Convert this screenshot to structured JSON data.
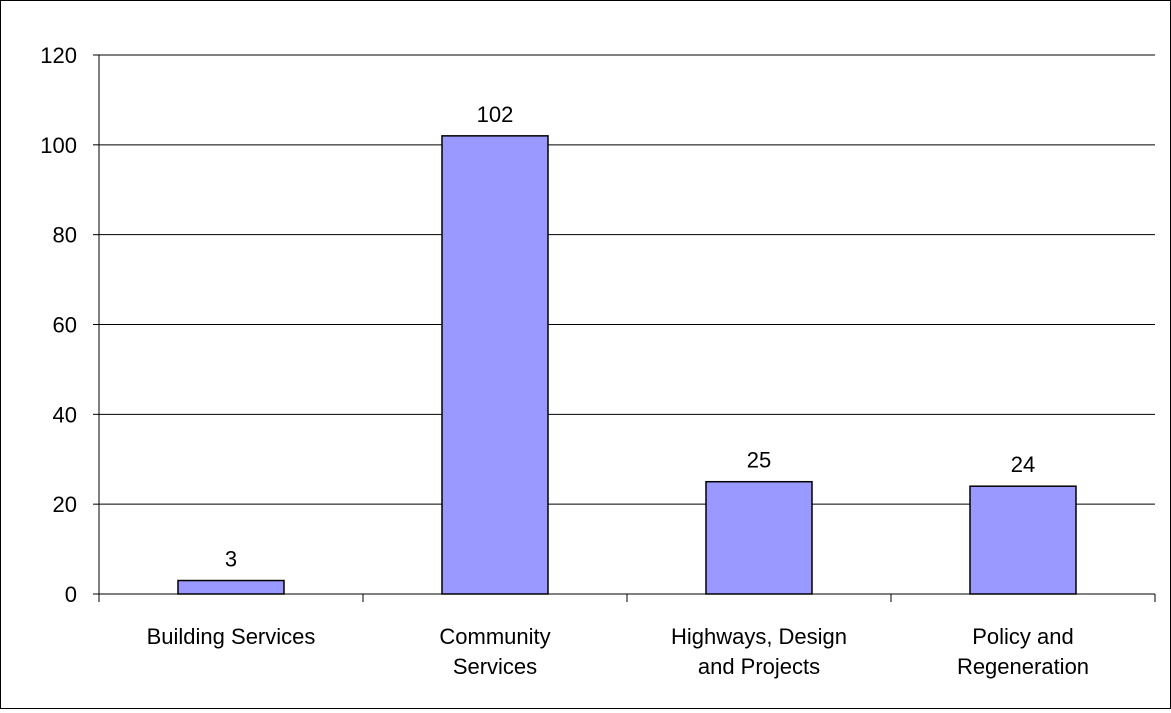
{
  "chart_data": {
    "type": "bar",
    "title": "",
    "xlabel": "",
    "ylabel": "",
    "categories": [
      [
        "Building Services"
      ],
      [
        "Community",
        "Services"
      ],
      [
        "Highways, Design",
        "and Projects"
      ],
      [
        "Policy and",
        "Regeneration"
      ]
    ],
    "values": [
      3,
      102,
      25,
      24
    ],
    "data_labels": [
      "3",
      "102",
      "25",
      "24"
    ],
    "ylim": [
      0,
      120
    ],
    "yticks": [
      "0",
      "20",
      "40",
      "60",
      "80",
      "100",
      "120"
    ],
    "grid": true,
    "legend": "none",
    "colors": {
      "bar_fill": "#9999ff",
      "bar_stroke": "#000000",
      "gridline": "#000000",
      "axis": "#000000",
      "background": "#ffffff"
    }
  }
}
